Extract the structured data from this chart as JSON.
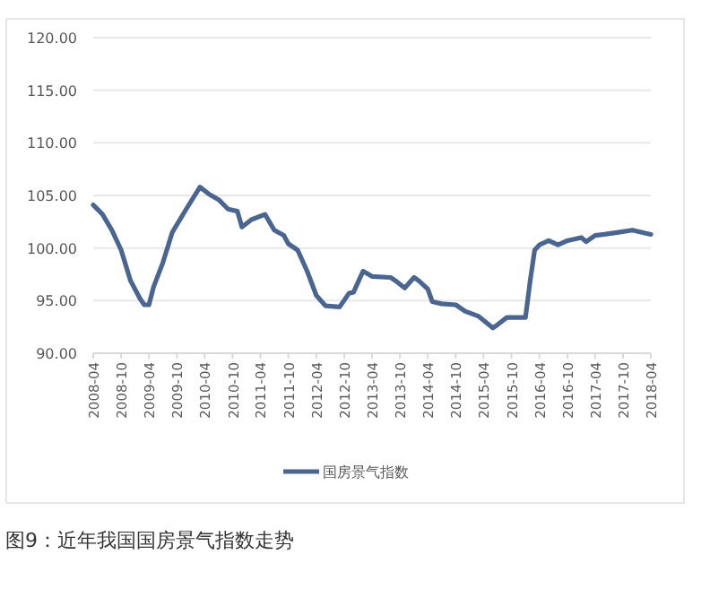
{
  "chart_data": {
    "type": "line",
    "title": "图9：近年我国国房景气指数走势",
    "x": [
      "2008-04",
      "2008-06",
      "2008-08",
      "2008-10",
      "2008-12",
      "2009-02",
      "2009-03",
      "2009-04",
      "2009-05",
      "2009-07",
      "2009-09",
      "2009-12",
      "2010-03",
      "2010-05",
      "2010-07",
      "2010-09",
      "2010-11",
      "2010-12",
      "2011-02",
      "2011-05",
      "2011-07",
      "2011-09",
      "2011-10",
      "2011-12",
      "2012-02",
      "2012-04",
      "2012-06",
      "2012-09",
      "2012-11",
      "2012-12",
      "2013-02",
      "2013-04",
      "2013-08",
      "2013-09",
      "2013-11",
      "2014-01",
      "2014-02",
      "2014-04",
      "2014-05",
      "2014-07",
      "2014-10",
      "2014-12",
      "2015-03",
      "2015-06",
      "2015-07",
      "2015-09",
      "2015-11",
      "2016-01",
      "2016-02",
      "2016-03",
      "2016-04",
      "2016-06",
      "2016-08",
      "2016-10",
      "2017-01",
      "2017-02",
      "2017-04",
      "2017-06",
      "2017-09",
      "2017-12",
      "2018-04"
    ],
    "series": [
      {
        "name": "国房景气指数",
        "color": "#4a6690",
        "values": [
          104.1,
          103.2,
          101.7,
          99.8,
          96.9,
          95.2,
          94.6,
          94.6,
          96.3,
          98.6,
          101.5,
          103.7,
          105.8,
          105.1,
          104.6,
          103.7,
          103.5,
          102.0,
          102.7,
          103.2,
          101.7,
          101.2,
          100.4,
          99.8,
          97.8,
          95.5,
          94.5,
          94.4,
          95.7,
          95.8,
          97.8,
          97.3,
          97.2,
          96.9,
          96.2,
          97.2,
          96.9,
          96.1,
          94.9,
          94.7,
          94.6,
          94.0,
          93.5,
          92.4,
          92.7,
          93.4,
          93.4,
          93.4,
          96.9,
          99.8,
          100.3,
          100.7,
          100.3,
          100.7,
          101.0,
          100.6,
          101.2,
          101.3,
          101.5,
          101.7,
          101.3
        ]
      }
    ],
    "xlim": [
      "2008-04",
      "2018-04"
    ],
    "xticks": [
      "2008-04",
      "2008-10",
      "2009-04",
      "2009-10",
      "2010-04",
      "2010-10",
      "2011-04",
      "2011-10",
      "2012-04",
      "2012-10",
      "2013-04",
      "2013-10",
      "2014-04",
      "2014-10",
      "2015-04",
      "2015-10",
      "2016-04",
      "2016-10",
      "2017-04",
      "2017-10",
      "2018-04"
    ],
    "ylim": [
      90,
      120
    ],
    "yticks": [
      {
        "value": 90,
        "label": "90.00"
      },
      {
        "value": 95,
        "label": "95.00"
      },
      {
        "value": 100,
        "label": "100.00"
      },
      {
        "value": 105,
        "label": "105.00"
      },
      {
        "value": 110,
        "label": "110.00"
      },
      {
        "value": 115,
        "label": "115.00"
      },
      {
        "value": 120,
        "label": "120.00"
      }
    ],
    "grid": "y",
    "legend": "bottom",
    "marker": "none",
    "line_style": "solid"
  }
}
